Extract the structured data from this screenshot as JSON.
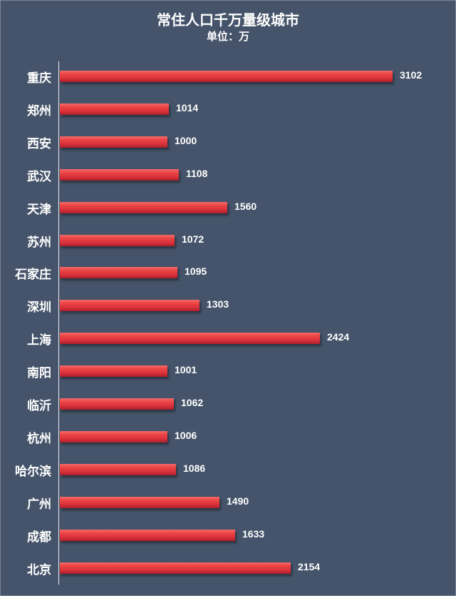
{
  "title": "常住人口千万量级城市",
  "subtitle": "单位：万",
  "colors": {
    "background": "#45546a",
    "bar": "#e53d42",
    "text": "#ffffff",
    "axis": "#e9edf2"
  },
  "chart_data": {
    "type": "bar",
    "orientation": "horizontal",
    "title": "常住人口千万量级城市",
    "subtitle": "单位：万",
    "xlabel": "",
    "ylabel": "",
    "unit": "万",
    "grid": false,
    "legend": null,
    "data_labels": true,
    "categories": [
      "重庆",
      "郑州",
      "西安",
      "武汉",
      "天津",
      "苏州",
      "石家庄",
      "深圳",
      "上海",
      "南阳",
      "临沂",
      "杭州",
      "哈尔滨",
      "广州",
      "成都",
      "北京"
    ],
    "values": [
      3102,
      1014,
      1000,
      1108,
      1560,
      1072,
      1095,
      1303,
      2424,
      1001,
      1062,
      1006,
      1086,
      1490,
      1633,
      2154
    ],
    "xlim": [
      0,
      3200
    ]
  },
  "rows": [
    {
      "label": "重庆",
      "value": "3102"
    },
    {
      "label": "郑州",
      "value": "1014"
    },
    {
      "label": "西安",
      "value": "1000"
    },
    {
      "label": "武汉",
      "value": "1108"
    },
    {
      "label": "天津",
      "value": "1560"
    },
    {
      "label": "苏州",
      "value": "1072"
    },
    {
      "label": "石家庄",
      "value": "1095"
    },
    {
      "label": "深圳",
      "value": "1303"
    },
    {
      "label": "上海",
      "value": "2424"
    },
    {
      "label": "南阳",
      "value": "1001"
    },
    {
      "label": "临沂",
      "value": "1062"
    },
    {
      "label": "杭州",
      "value": "1006"
    },
    {
      "label": "哈尔滨",
      "value": "1086"
    },
    {
      "label": "广州",
      "value": "1490"
    },
    {
      "label": "成都",
      "value": "1633"
    },
    {
      "label": "北京",
      "value": "2154"
    }
  ]
}
